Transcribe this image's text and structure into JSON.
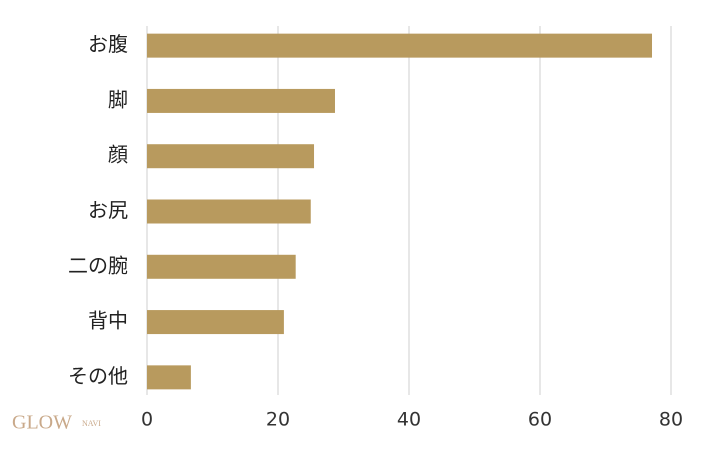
{
  "chart_data": {
    "type": "bar",
    "orientation": "horizontal",
    "categories": [
      "お腹",
      "脚",
      "顔",
      "お尻",
      "二の腕",
      "背中",
      "その他"
    ],
    "values": [
      77.1,
      28.7,
      25.5,
      25.0,
      22.7,
      20.9,
      6.7
    ],
    "color": "#b89a5e",
    "xlim": [
      0,
      80
    ],
    "xticks": [
      0,
      20,
      40,
      60,
      80
    ],
    "grid": true
  },
  "watermark": {
    "brand": "GLOW",
    "sub": "NAVI"
  }
}
